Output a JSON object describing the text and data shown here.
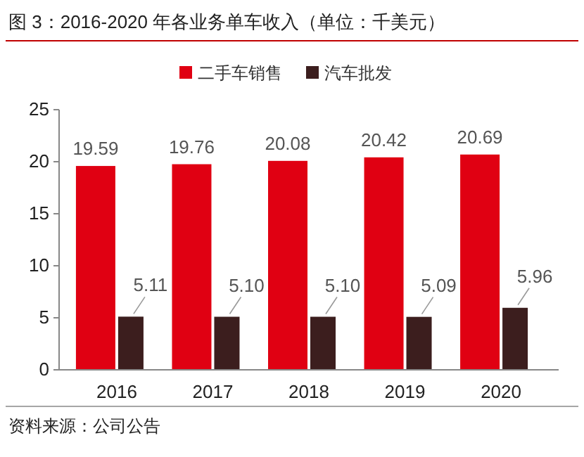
{
  "chart_data": {
    "type": "bar",
    "title": "图 3：2016-2020 年各业务单车收入（单位：千美元）",
    "categories": [
      "2016",
      "2017",
      "2018",
      "2019",
      "2020"
    ],
    "series": [
      {
        "name": "二手车销售",
        "color": "#e00012",
        "values": [
          19.59,
          19.76,
          20.08,
          20.42,
          20.69
        ],
        "value_labels": [
          "19.59",
          "19.76",
          "20.08",
          "20.42",
          "20.69"
        ]
      },
      {
        "name": "汽车批发",
        "color": "#3c1e1e",
        "values": [
          5.11,
          5.1,
          5.1,
          5.09,
          5.96
        ],
        "value_labels": [
          "5.11",
          "5.10",
          "5.10",
          "5.09",
          "5.96"
        ]
      }
    ],
    "ylim": [
      0,
      25
    ],
    "yticks": [
      0,
      5,
      10,
      15,
      20,
      25
    ],
    "grid": false,
    "legend": "top",
    "annotations": [
      "资料来源：公司公告"
    ]
  }
}
